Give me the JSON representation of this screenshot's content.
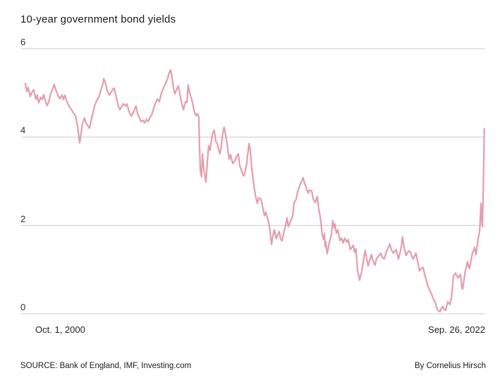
{
  "title": "10-year government bond yields",
  "footer": {
    "source": "SOURCE: Bank of England, IMF, Investing.com",
    "byline": "By Cornelius Hirsch"
  },
  "colors": {
    "line": "#e49dab",
    "gridline": "#cccccc",
    "text": "#1a1a1a"
  },
  "chart_data": {
    "type": "line",
    "title": "10-year government bond yields",
    "xlabel": "",
    "ylabel": "",
    "x_start_label": "Oct. 1, 2000",
    "x_end_label": "Sep. 26, 2022",
    "ylim": [
      0,
      6
    ],
    "yticks": [
      6,
      4,
      2,
      0
    ],
    "xlim_years": [
      2000.55,
      2022.75
    ],
    "grid": "horizontal",
    "legend": "none",
    "series": [
      {
        "name": "10-year government bond yield (%)",
        "points": [
          [
            2000.75,
            5.21
          ],
          [
            2000.82,
            5.03
          ],
          [
            2000.88,
            5.12
          ],
          [
            2000.99,
            4.92
          ],
          [
            2001.05,
            5.0
          ],
          [
            2001.15,
            5.07
          ],
          [
            2001.26,
            4.85
          ],
          [
            2001.32,
            4.95
          ],
          [
            2001.39,
            4.78
          ],
          [
            2001.49,
            4.9
          ],
          [
            2001.56,
            4.85
          ],
          [
            2001.63,
            4.96
          ],
          [
            2001.73,
            4.78
          ],
          [
            2001.8,
            4.71
          ],
          [
            2001.9,
            4.85
          ],
          [
            2001.96,
            4.98
          ],
          [
            2002.07,
            5.1
          ],
          [
            2002.13,
            5.19
          ],
          [
            2002.2,
            5.08
          ],
          [
            2002.3,
            4.95
          ],
          [
            2002.4,
            4.87
          ],
          [
            2002.5,
            4.95
          ],
          [
            2002.57,
            4.85
          ],
          [
            2002.64,
            4.95
          ],
          [
            2002.74,
            4.8
          ],
          [
            2002.84,
            4.7
          ],
          [
            2002.91,
            4.65
          ],
          [
            2003.01,
            4.58
          ],
          [
            2003.08,
            4.52
          ],
          [
            2003.15,
            4.48
          ],
          [
            2003.25,
            4.25
          ],
          [
            2003.31,
            4.0
          ],
          [
            2003.35,
            3.87
          ],
          [
            2003.42,
            4.1
          ],
          [
            2003.48,
            4.3
          ],
          [
            2003.58,
            4.43
          ],
          [
            2003.65,
            4.32
          ],
          [
            2003.72,
            4.27
          ],
          [
            2003.82,
            4.2
          ],
          [
            2003.89,
            4.36
          ],
          [
            2003.96,
            4.5
          ],
          [
            2004.06,
            4.7
          ],
          [
            2004.16,
            4.82
          ],
          [
            2004.26,
            4.9
          ],
          [
            2004.36,
            5.05
          ],
          [
            2004.43,
            5.15
          ],
          [
            2004.5,
            5.32
          ],
          [
            2004.6,
            5.2
          ],
          [
            2004.66,
            5.05
          ],
          [
            2004.77,
            4.95
          ],
          [
            2004.87,
            5.02
          ],
          [
            2004.93,
            5.08
          ],
          [
            2005.0,
            5.11
          ],
          [
            2005.1,
            4.9
          ],
          [
            2005.2,
            4.7
          ],
          [
            2005.27,
            4.62
          ],
          [
            2005.37,
            4.7
          ],
          [
            2005.44,
            4.75
          ],
          [
            2005.54,
            4.7
          ],
          [
            2005.61,
            4.75
          ],
          [
            2005.71,
            4.58
          ],
          [
            2005.78,
            4.5
          ],
          [
            2005.84,
            4.48
          ],
          [
            2005.95,
            4.6
          ],
          [
            2006.05,
            4.7
          ],
          [
            2006.11,
            4.55
          ],
          [
            2006.22,
            4.42
          ],
          [
            2006.28,
            4.35
          ],
          [
            2006.38,
            4.38
          ],
          [
            2006.45,
            4.32
          ],
          [
            2006.55,
            4.4
          ],
          [
            2006.62,
            4.35
          ],
          [
            2006.72,
            4.45
          ],
          [
            2006.79,
            4.5
          ],
          [
            2006.89,
            4.65
          ],
          [
            2006.96,
            4.75
          ],
          [
            2007.06,
            4.86
          ],
          [
            2007.16,
            4.8
          ],
          [
            2007.26,
            5.0
          ],
          [
            2007.36,
            5.11
          ],
          [
            2007.46,
            5.2
          ],
          [
            2007.57,
            5.35
          ],
          [
            2007.63,
            5.45
          ],
          [
            2007.7,
            5.52
          ],
          [
            2007.77,
            5.35
          ],
          [
            2007.84,
            5.1
          ],
          [
            2007.9,
            4.98
          ],
          [
            2007.97,
            5.05
          ],
          [
            2008.07,
            5.16
          ],
          [
            2008.17,
            4.9
          ],
          [
            2008.24,
            4.75
          ],
          [
            2008.31,
            4.62
          ],
          [
            2008.41,
            4.8
          ],
          [
            2008.48,
            4.78
          ],
          [
            2008.54,
            5.18
          ],
          [
            2008.61,
            5.0
          ],
          [
            2008.71,
            4.85
          ],
          [
            2008.78,
            4.7
          ],
          [
            2008.85,
            4.55
          ],
          [
            2008.92,
            4.48
          ],
          [
            2008.98,
            4.53
          ],
          [
            2009.05,
            4.46
          ],
          [
            2009.08,
            3.85
          ],
          [
            2009.12,
            3.25
          ],
          [
            2009.18,
            3.1
          ],
          [
            2009.22,
            3.62
          ],
          [
            2009.29,
            3.25
          ],
          [
            2009.39,
            2.98
          ],
          [
            2009.45,
            3.4
          ],
          [
            2009.52,
            3.8
          ],
          [
            2009.59,
            3.7
          ],
          [
            2009.66,
            3.94
          ],
          [
            2009.72,
            4.1
          ],
          [
            2009.79,
            4.15
          ],
          [
            2009.86,
            3.9
          ],
          [
            2009.93,
            3.86
          ],
          [
            2009.99,
            3.73
          ],
          [
            2010.06,
            3.62
          ],
          [
            2010.13,
            3.8
          ],
          [
            2010.2,
            4.1
          ],
          [
            2010.26,
            4.22
          ],
          [
            2010.33,
            4.05
          ],
          [
            2010.4,
            3.85
          ],
          [
            2010.5,
            3.5
          ],
          [
            2010.57,
            3.6
          ],
          [
            2010.67,
            3.4
          ],
          [
            2010.77,
            3.46
          ],
          [
            2010.84,
            3.55
          ],
          [
            2010.94,
            3.62
          ],
          [
            2011.01,
            3.35
          ],
          [
            2011.11,
            3.22
          ],
          [
            2011.18,
            3.12
          ],
          [
            2011.24,
            3.15
          ],
          [
            2011.34,
            3.4
          ],
          [
            2011.45,
            3.85
          ],
          [
            2011.51,
            3.7
          ],
          [
            2011.58,
            3.3
          ],
          [
            2011.68,
            2.92
          ],
          [
            2011.75,
            2.7
          ],
          [
            2011.85,
            2.5
          ],
          [
            2011.92,
            2.62
          ],
          [
            2012.02,
            2.6
          ],
          [
            2012.09,
            2.45
          ],
          [
            2012.19,
            2.22
          ],
          [
            2012.25,
            2.3
          ],
          [
            2012.36,
            2.13
          ],
          [
            2012.42,
            2.0
          ],
          [
            2012.53,
            1.57
          ],
          [
            2012.59,
            1.75
          ],
          [
            2012.66,
            1.9
          ],
          [
            2012.76,
            1.7
          ],
          [
            2012.83,
            1.8
          ],
          [
            2012.9,
            1.86
          ],
          [
            2012.96,
            1.7
          ],
          [
            2013.03,
            1.65
          ],
          [
            2013.1,
            1.8
          ],
          [
            2013.2,
            2.0
          ],
          [
            2013.27,
            2.17
          ],
          [
            2013.33,
            1.97
          ],
          [
            2013.44,
            2.1
          ],
          [
            2013.54,
            2.22
          ],
          [
            2013.6,
            2.5
          ],
          [
            2013.71,
            2.6
          ],
          [
            2013.77,
            2.75
          ],
          [
            2013.87,
            2.9
          ],
          [
            2013.94,
            2.97
          ],
          [
            2014.04,
            3.08
          ],
          [
            2014.11,
            2.95
          ],
          [
            2014.18,
            2.86
          ],
          [
            2014.28,
            2.73
          ],
          [
            2014.35,
            2.8
          ],
          [
            2014.45,
            2.78
          ],
          [
            2014.52,
            2.6
          ],
          [
            2014.62,
            2.52
          ],
          [
            2014.72,
            2.65
          ],
          [
            2014.78,
            2.4
          ],
          [
            2014.89,
            2.1
          ],
          [
            2014.95,
            1.8
          ],
          [
            2015.02,
            1.68
          ],
          [
            2015.06,
            1.82
          ],
          [
            2015.09,
            1.52
          ],
          [
            2015.12,
            1.63
          ],
          [
            2015.19,
            1.36
          ],
          [
            2015.29,
            1.6
          ],
          [
            2015.39,
            1.8
          ],
          [
            2015.46,
            2.11
          ],
          [
            2015.52,
            1.95
          ],
          [
            2015.56,
            2.03
          ],
          [
            2015.63,
            1.82
          ],
          [
            2015.7,
            1.9
          ],
          [
            2015.8,
            1.66
          ],
          [
            2015.88,
            1.71
          ],
          [
            2015.95,
            1.6
          ],
          [
            2016.03,
            1.71
          ],
          [
            2016.13,
            1.62
          ],
          [
            2016.2,
            1.68
          ],
          [
            2016.3,
            1.45
          ],
          [
            2016.37,
            1.5
          ],
          [
            2016.44,
            1.55
          ],
          [
            2016.51,
            1.39
          ],
          [
            2016.57,
            1.47
          ],
          [
            2016.64,
            1.0
          ],
          [
            2016.74,
            0.76
          ],
          [
            2016.84,
            0.95
          ],
          [
            2016.94,
            1.25
          ],
          [
            2017.01,
            1.44
          ],
          [
            2017.08,
            1.25
          ],
          [
            2017.15,
            1.08
          ],
          [
            2017.25,
            1.25
          ],
          [
            2017.31,
            1.34
          ],
          [
            2017.38,
            1.2
          ],
          [
            2017.48,
            1.1
          ],
          [
            2017.55,
            1.25
          ],
          [
            2017.65,
            1.3
          ],
          [
            2017.75,
            1.37
          ],
          [
            2017.82,
            1.28
          ],
          [
            2017.92,
            1.24
          ],
          [
            2018.02,
            1.4
          ],
          [
            2018.09,
            1.48
          ],
          [
            2018.19,
            1.58
          ],
          [
            2018.26,
            1.45
          ],
          [
            2018.36,
            1.37
          ],
          [
            2018.43,
            1.42
          ],
          [
            2018.49,
            1.45
          ],
          [
            2018.6,
            1.24
          ],
          [
            2018.66,
            1.35
          ],
          [
            2018.73,
            1.5
          ],
          [
            2018.8,
            1.74
          ],
          [
            2018.87,
            1.5
          ],
          [
            2018.97,
            1.32
          ],
          [
            2019.03,
            1.38
          ],
          [
            2019.1,
            1.42
          ],
          [
            2019.17,
            1.4
          ],
          [
            2019.24,
            1.3
          ],
          [
            2019.31,
            1.24
          ],
          [
            2019.37,
            1.3
          ],
          [
            2019.44,
            1.37
          ],
          [
            2019.51,
            1.2
          ],
          [
            2019.61,
            0.97
          ],
          [
            2019.68,
            1.02
          ],
          [
            2019.78,
            1.05
          ],
          [
            2019.85,
            0.9
          ],
          [
            2019.95,
            0.73
          ],
          [
            2020.01,
            0.62
          ],
          [
            2020.12,
            0.52
          ],
          [
            2020.18,
            0.45
          ],
          [
            2020.22,
            0.4
          ],
          [
            2020.28,
            0.32
          ],
          [
            2020.35,
            0.27
          ],
          [
            2020.42,
            0.15
          ],
          [
            2020.49,
            0.08
          ],
          [
            2020.59,
            0.05
          ],
          [
            2020.65,
            0.12
          ],
          [
            2020.72,
            0.16
          ],
          [
            2020.79,
            0.1
          ],
          [
            2020.86,
            0.08
          ],
          [
            2020.92,
            0.2
          ],
          [
            2020.96,
            0.27
          ],
          [
            2021.02,
            0.24
          ],
          [
            2021.06,
            0.21
          ],
          [
            2021.13,
            0.35
          ],
          [
            2021.16,
            0.48
          ],
          [
            2021.23,
            0.85
          ],
          [
            2021.3,
            0.9
          ],
          [
            2021.33,
            0.92
          ],
          [
            2021.4,
            0.85
          ],
          [
            2021.46,
            0.81
          ],
          [
            2021.53,
            0.87
          ],
          [
            2021.57,
            0.89
          ],
          [
            2021.63,
            0.6
          ],
          [
            2021.67,
            0.56
          ],
          [
            2021.73,
            0.75
          ],
          [
            2021.8,
            0.97
          ],
          [
            2021.87,
            1.1
          ],
          [
            2021.9,
            1.18
          ],
          [
            2021.97,
            1.05
          ],
          [
            2022.0,
            1.02
          ],
          [
            2022.07,
            1.2
          ],
          [
            2022.14,
            1.37
          ],
          [
            2022.21,
            1.45
          ],
          [
            2022.24,
            1.5
          ],
          [
            2022.31,
            1.34
          ],
          [
            2022.37,
            1.55
          ],
          [
            2022.41,
            1.69
          ],
          [
            2022.48,
            1.86
          ],
          [
            2022.51,
            2.1
          ],
          [
            2022.55,
            2.5
          ],
          [
            2022.58,
            2.2
          ],
          [
            2022.61,
            1.97
          ],
          [
            2022.65,
            2.6
          ],
          [
            2022.68,
            3.4
          ],
          [
            2022.71,
            4.19
          ]
        ]
      }
    ]
  }
}
